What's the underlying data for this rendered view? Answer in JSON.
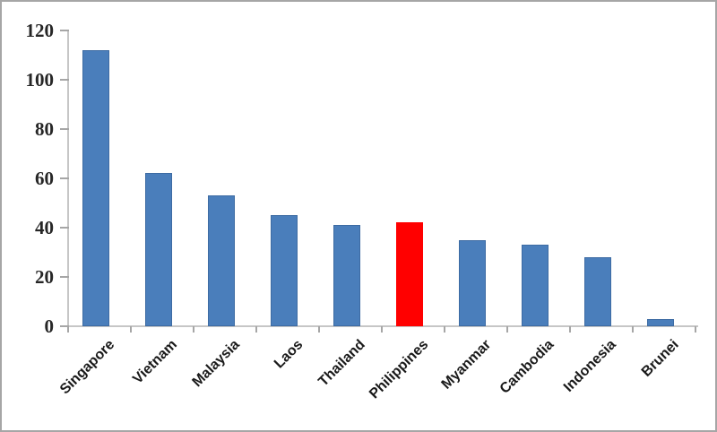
{
  "chart_data": {
    "type": "bar",
    "categories": [
      "Singapore",
      "Vietnam",
      "Malaysia",
      "Laos",
      "Thailand",
      "Philippines",
      "Myanmar",
      "Cambodia",
      "Indonesia",
      "Brunei"
    ],
    "values": [
      112,
      62,
      53,
      45,
      41,
      42,
      35,
      33,
      28,
      3
    ],
    "highlight_category": "Philippines",
    "y_ticks": [
      0,
      20,
      40,
      60,
      80,
      100,
      120
    ],
    "ylim": [
      0,
      120
    ],
    "grid": false,
    "legend": false,
    "colors": {
      "bar_fill": "#4a7ebb",
      "bar_border": "#3d6ba3",
      "highlight_fill": "#ff0000",
      "axis_line": "#c6c6c6",
      "tick": "#a6a6a6",
      "y_label_text": "#262626",
      "x_label_text": "#1a1a1a",
      "frame_border": "#a6a6a6",
      "background": "#ffffff"
    }
  }
}
